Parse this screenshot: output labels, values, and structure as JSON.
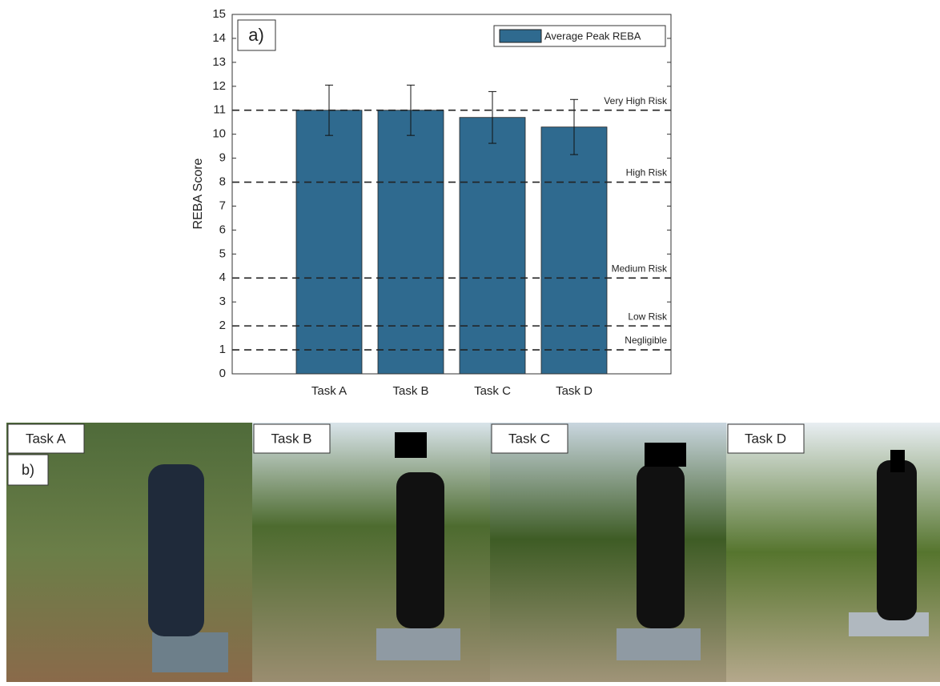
{
  "chart_data": {
    "type": "bar",
    "panel_label": "a)",
    "y_label": "REBA Score",
    "categories": [
      "Task A",
      "Task B",
      "Task C",
      "Task D"
    ],
    "series": [
      {
        "name": "Average Peak REBA",
        "color": "#2f6a8f",
        "values": [
          11,
          11,
          10.7,
          10.3
        ],
        "errors": [
          1.05,
          1.05,
          1.08,
          1.15
        ]
      }
    ],
    "ylim": [
      0,
      15
    ],
    "yticks": [
      0,
      1,
      2,
      3,
      4,
      5,
      6,
      7,
      8,
      9,
      10,
      11,
      12,
      13,
      14,
      15
    ],
    "thresholds": [
      {
        "value": 11,
        "label": "Very High Risk"
      },
      {
        "value": 8,
        "label": "High Risk"
      },
      {
        "value": 4,
        "label": "Medium Risk"
      },
      {
        "value": 2,
        "label": "Low Risk"
      },
      {
        "value": 1,
        "label": "Negligible"
      }
    ],
    "legend": "upper right"
  },
  "photos": {
    "panel_label": "b)",
    "labels": [
      "Task A",
      "Task B",
      "Task C",
      "Task D"
    ]
  }
}
